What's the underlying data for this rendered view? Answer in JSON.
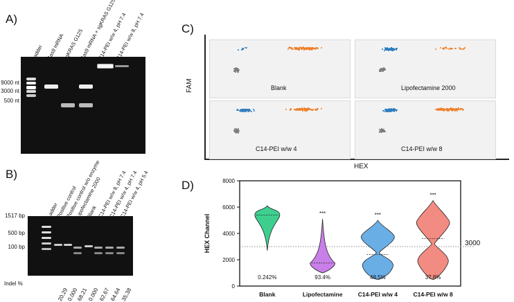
{
  "panelA": {
    "letter": "A)",
    "lanes": [
      "Ladder",
      "Cas9 mRNA",
      "sgKRAS G12S",
      "Cas9 mRNA + sgKRAS G12S",
      "C14-PEI w/w 4, pH 7.4",
      "C14-PEI w/w 8, pH 7.4"
    ],
    "size_markers": [
      "9000 nt",
      "3000 nt",
      "500 nt"
    ]
  },
  "panelB": {
    "letter": "B)",
    "lanes": [
      "Ladder",
      "Positive control",
      "Positive control w/o enzyme",
      "Lipofectamine 2000",
      "Blank",
      "C14-PEI w/w 8, pH 7.4",
      "C14-PEI w/w 4, pH 7.4",
      "C14-PEI w/w 4, pH 5.4"
    ],
    "size_markers": [
      "1517 bp",
      "500 bp",
      "100 bp"
    ],
    "indel_label": "Indel %",
    "indel_values": [
      "20.29",
      "0.000",
      "68.21",
      "0.000",
      "62.67",
      "64.64",
      "35.38"
    ]
  },
  "panelC": {
    "letter": "C)",
    "ylabel": "FAM",
    "xlabel": "HEX",
    "subplots": [
      "Blank",
      "Lipofectamine 2000",
      "C14-PEI w/w 4",
      "C14-PEI w/w 8"
    ],
    "colors": {
      "negative": "#7f7f7f",
      "hex_positive": "#f07f2a",
      "fam_positive": "#2f7dbf"
    }
  },
  "panelD": {
    "letter": "D)",
    "chart_data": {
      "type": "violin",
      "title": "",
      "ylabel": "HEX Channel",
      "xlabel": "",
      "ylim": [
        0,
        8000
      ],
      "yticks": [
        0,
        2000,
        4000,
        6000,
        8000
      ],
      "threshold": 3000,
      "threshold_label": "3000",
      "categories": [
        "Blank",
        "Lipofectamine",
        "C14-PEI w/w 4",
        "C14-PEI w/w 8"
      ],
      "colors": [
        "#3ecf8e",
        "#c97fe8",
        "#6aaee6",
        "#f28b82"
      ],
      "medians": [
        5400,
        1750,
        2400,
        3600
      ],
      "ranges": [
        [
          2700,
          6100
        ],
        [
          1000,
          5100
        ],
        [
          500,
          5000
        ],
        [
          500,
          6500
        ]
      ],
      "annotations": [
        "",
        "***",
        "***",
        "***"
      ],
      "percent_labels": [
        "0.242%",
        "93.4%",
        "48.5%",
        "37.8%"
      ]
    }
  }
}
